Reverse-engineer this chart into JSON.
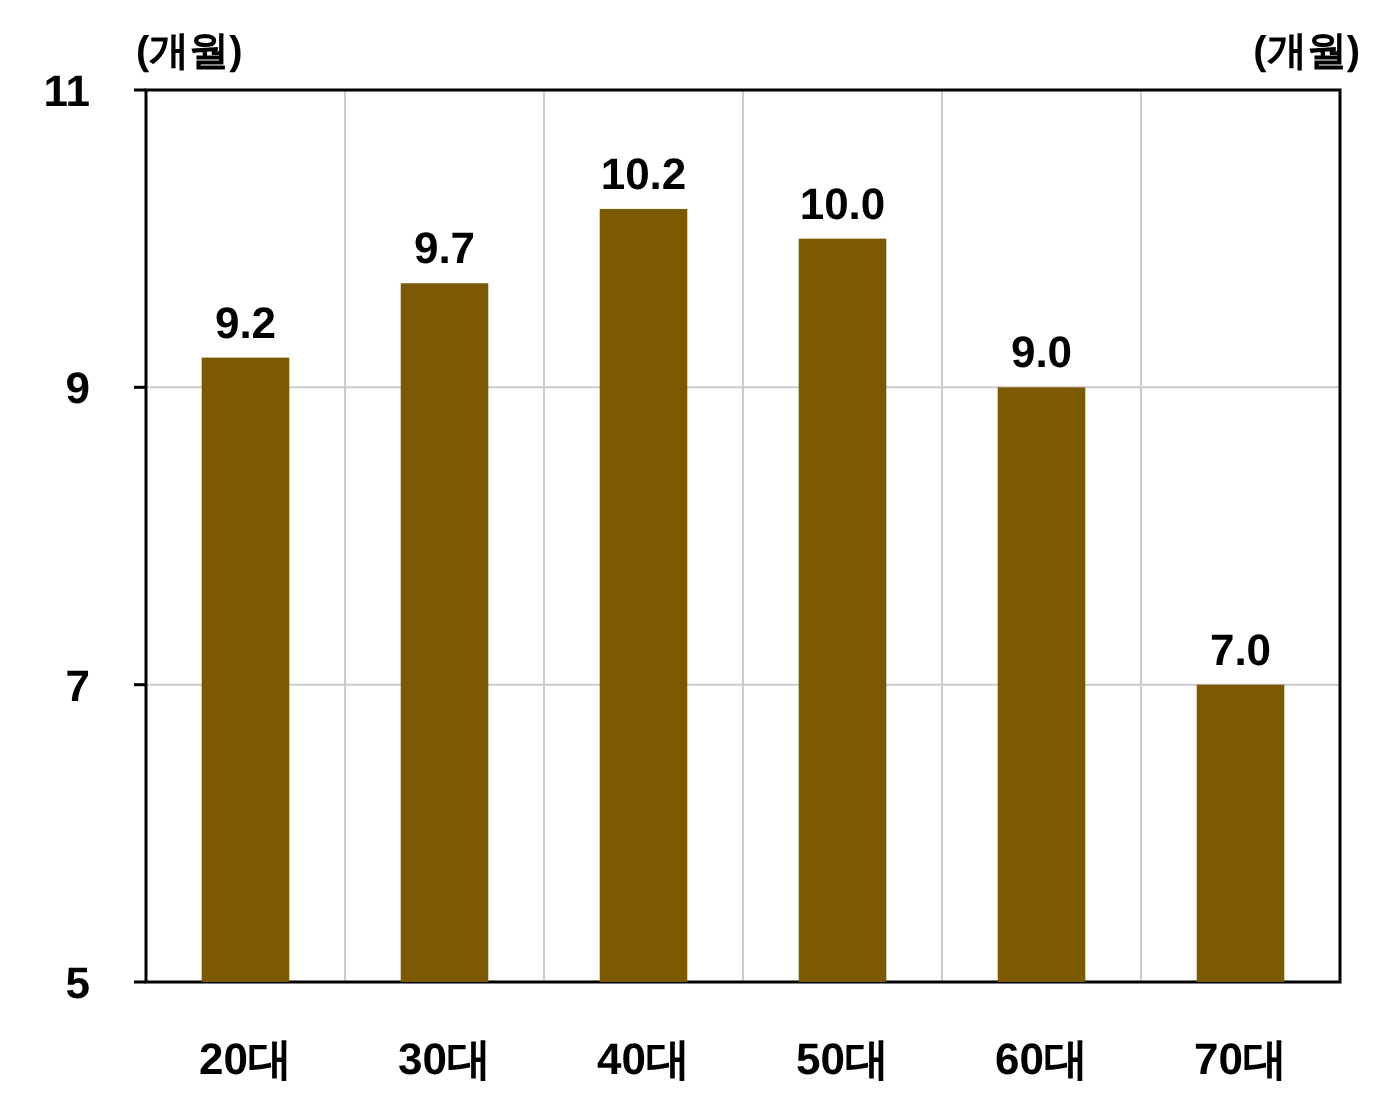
{
  "chart_data": {
    "type": "bar",
    "ylabel": "(개월)",
    "y2label": "(개월)",
    "categories": [
      "20대",
      "30대",
      "40대",
      "50대",
      "60대",
      "70대"
    ],
    "values": [
      9.2,
      9.7,
      10.2,
      10.0,
      9.0,
      7.0
    ],
    "color": "#7a5900",
    "ylim": [
      5,
      11
    ],
    "yticks": [
      5,
      7,
      9,
      11
    ],
    "grid": true,
    "value_labels": [
      "9.2",
      "9.7",
      "10.2",
      "10.0",
      "9.0",
      "7.0"
    ]
  }
}
